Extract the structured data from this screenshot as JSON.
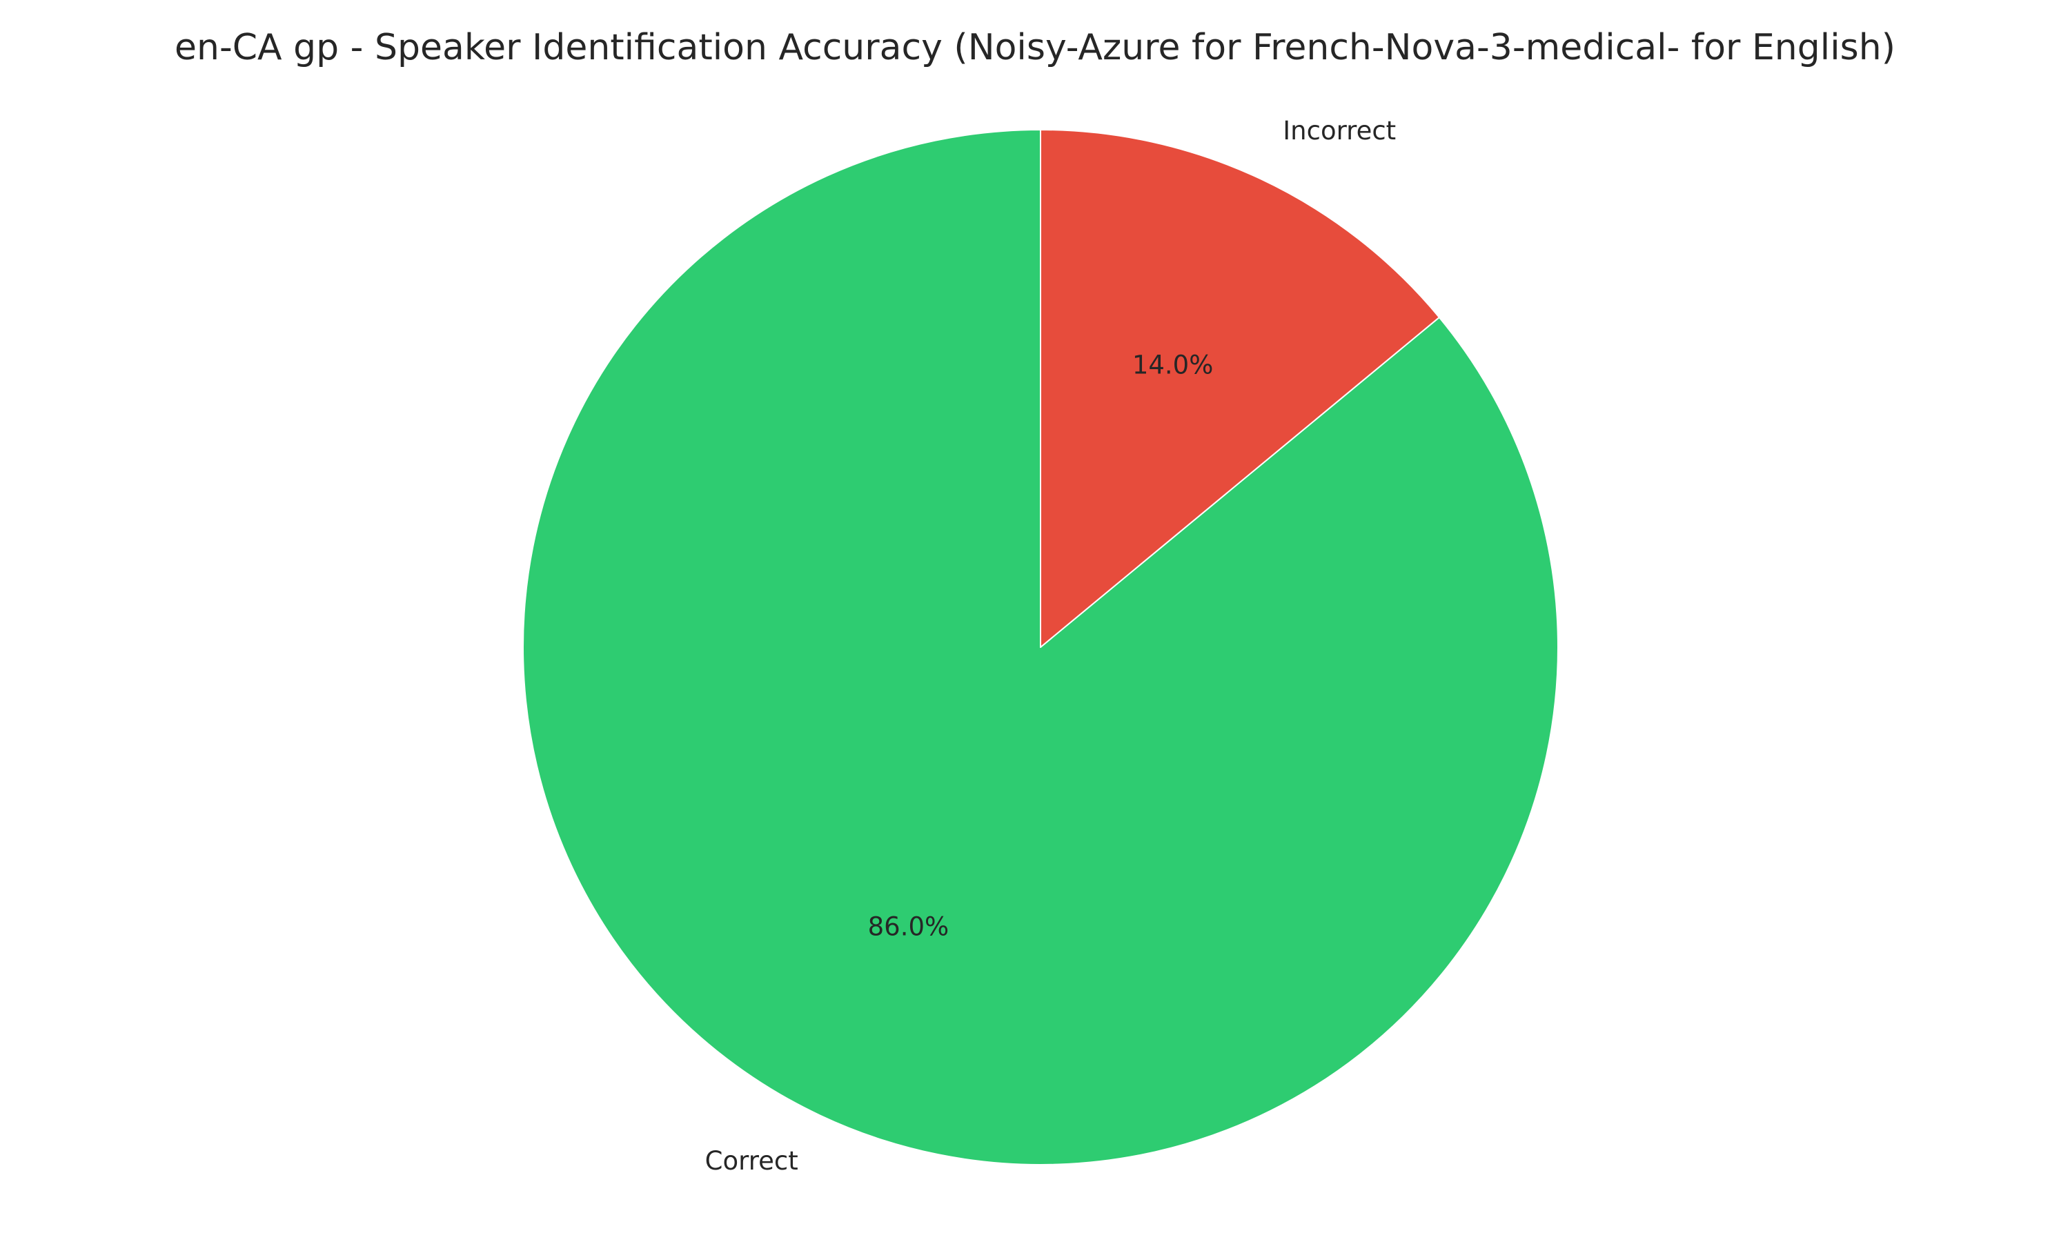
{
  "chart_data": {
    "type": "pie",
    "title": "en-CA gp - Speaker Identification Accuracy (Noisy-Azure for French-Nova-3-medical- for English)",
    "start_angle_deg": 90,
    "direction": "counterclockwise",
    "slices": [
      {
        "label": "Correct",
        "value": 86.0,
        "pct_label": "86.0%",
        "color": "#2ecc71"
      },
      {
        "label": "Incorrect",
        "value": 14.0,
        "pct_label": "14.0%",
        "color": "#e74c3c"
      }
    ],
    "edge_color": "#ffffff"
  }
}
